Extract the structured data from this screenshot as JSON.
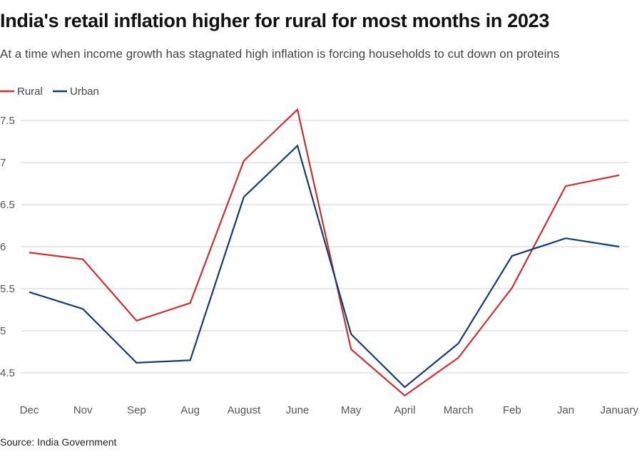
{
  "chart_data": {
    "type": "line",
    "title": "India's retail inflation higher for rural for most months in 2023",
    "subtitle": "At a time when income growth has stagnated high inflation is forcing households to cut down on proteins",
    "source": "Source: India Government",
    "categories": [
      "Dec",
      "Nov",
      "Sep",
      "Aug",
      "August",
      "June",
      "May",
      "April",
      "March",
      "Feb",
      "Jan",
      "January"
    ],
    "series": [
      {
        "name": "Rural",
        "color": "#c8312f",
        "values": [
          5.93,
          5.85,
          5.12,
          5.33,
          7.02,
          7.63,
          4.78,
          4.23,
          4.68,
          5.51,
          6.72,
          6.85
        ]
      },
      {
        "name": "Urban",
        "color": "#133d6f",
        "values": [
          5.46,
          5.26,
          4.62,
          4.65,
          6.59,
          7.2,
          4.96,
          4.33,
          4.85,
          5.89,
          6.1,
          6.0
        ]
      }
    ],
    "yticks": [
      "4.5",
      "5",
      "5.5",
      "6",
      "6.5",
      "7",
      "7.5"
    ],
    "ylim": [
      4.2,
      7.7
    ],
    "grid": true,
    "legend": "top-left"
  }
}
